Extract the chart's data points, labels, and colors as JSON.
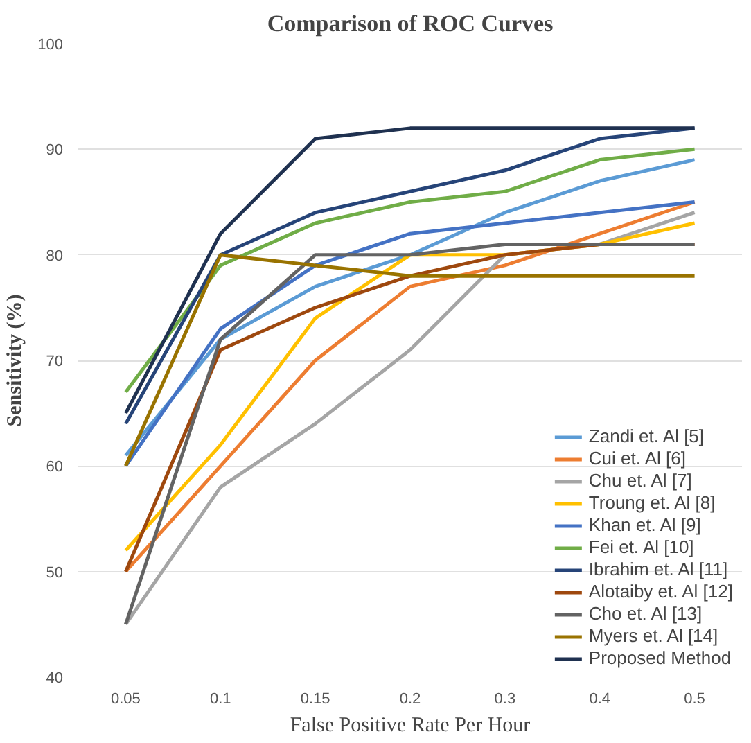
{
  "chart_data": {
    "type": "line",
    "title": "Comparison of ROC Curves",
    "xlabel": "False Positive Rate Per Hour",
    "ylabel": "Sensitivity (%)",
    "categories": [
      "0.05",
      "0.1",
      "0.15",
      "0.2",
      "0.3",
      "0.4",
      "0.5"
    ],
    "ylim": [
      40,
      100
    ],
    "yticks": [
      40,
      50,
      60,
      70,
      80,
      90,
      100
    ],
    "grid": "y",
    "legend": "bottom right",
    "marker": "none",
    "line_style": "solid",
    "series": [
      {
        "name": "Zandi et. Al [5]",
        "color": "#5b9bd5",
        "values": [
          61,
          72,
          77,
          80,
          84,
          87,
          89
        ]
      },
      {
        "name": "Cui et. Al [6]",
        "color": "#ed7d31",
        "values": [
          50,
          60,
          70,
          77,
          79,
          82,
          85
        ]
      },
      {
        "name": "Chu et. Al [7]",
        "color": "#a5a5a5",
        "values": [
          45,
          58,
          64,
          71,
          80,
          81,
          84
        ]
      },
      {
        "name": "Troung et. Al [8]",
        "color": "#ffc000",
        "values": [
          52,
          62,
          74,
          80,
          80,
          81,
          83
        ]
      },
      {
        "name": "Khan et. Al [9]",
        "color": "#4472c4",
        "values": [
          60,
          73,
          79,
          82,
          83,
          84,
          85
        ]
      },
      {
        "name": "Fei et. Al [10]",
        "color": "#70ad47",
        "values": [
          67,
          79,
          83,
          85,
          86,
          89,
          90
        ]
      },
      {
        "name": "Ibrahim et. Al [11]",
        "color": "#264478",
        "values": [
          64,
          80,
          84,
          86,
          88,
          91,
          92
        ]
      },
      {
        "name": "Alotaiby et. Al [12]",
        "color": "#9e480e",
        "values": [
          50,
          71,
          75,
          78,
          80,
          81,
          81
        ]
      },
      {
        "name": "Cho et. Al [13]",
        "color": "#636363",
        "values": [
          45,
          72,
          80,
          80,
          81,
          81,
          81
        ]
      },
      {
        "name": "Myers et. Al [14]",
        "color": "#997300",
        "values": [
          60,
          80,
          79,
          78,
          78,
          78,
          78
        ]
      },
      {
        "name": "Proposed Method",
        "color": "#1f3150",
        "values": [
          65,
          82,
          91,
          92,
          92,
          92,
          92
        ]
      }
    ]
  }
}
